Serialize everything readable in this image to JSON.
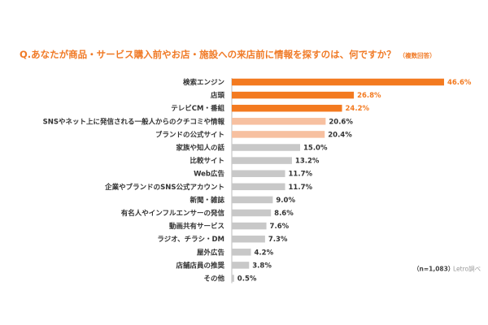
{
  "title": "Q.あなたが商品・サービス購入前やお店・施設への来店前に情報を探すのは、何ですか？",
  "title_note": "（複数回答）",
  "sample_note": "（n=1,083）",
  "source_note": "Letro調べ",
  "colors": {
    "dark_orange": "#f37a20",
    "light_orange": "#f7c0a0",
    "gray": "#c8c8c8",
    "value_dark": "#333333"
  },
  "chart_data": {
    "type": "bar",
    "orientation": "horizontal",
    "title": "Q.あなたが商品・サービス購入前やお店・施設への来店前に情報を探すのは、何ですか？",
    "unit": "%",
    "xlim": [
      0,
      50
    ],
    "grid": false,
    "categories": [
      "検索エンジン",
      "店頭",
      "テレビCM・番組",
      "SNSやネット上に発信される一般人からのクチコミや情報",
      "ブランドの公式サイト",
      "家族や知人の話",
      "比較サイト",
      "Web広告",
      "企業やブランドのSNS公式アカウント",
      "新聞・雑誌",
      "有名人やインフルエンサーの発信",
      "動画共有サービス",
      "ラジオ、チラシ・DM",
      "屋外広告",
      "店舗店員の推奨",
      "その他"
    ],
    "values": [
      46.6,
      26.8,
      24.2,
      20.6,
      20.4,
      15.0,
      13.2,
      11.7,
      11.7,
      9.0,
      8.6,
      7.6,
      7.3,
      4.2,
      3.8,
      0.5
    ],
    "labels": [
      "46.6%",
      "26.8%",
      "24.2%",
      "20.6%",
      "20.4%",
      "15.0%",
      "13.2%",
      "11.7%",
      "11.7%",
      "9.0%",
      "8.6%",
      "7.6%",
      "7.3%",
      "4.2%",
      "3.8%",
      "0.5%"
    ],
    "bar_colors": [
      "dark_orange",
      "dark_orange",
      "dark_orange",
      "light_orange",
      "light_orange",
      "gray",
      "gray",
      "gray",
      "gray",
      "gray",
      "gray",
      "gray",
      "gray",
      "gray",
      "gray",
      "gray"
    ],
    "label_colors": [
      "dark_orange",
      "dark_orange",
      "dark_orange",
      "value_dark",
      "value_dark",
      "value_dark",
      "value_dark",
      "value_dark",
      "value_dark",
      "value_dark",
      "value_dark",
      "value_dark",
      "value_dark",
      "value_dark",
      "value_dark",
      "value_dark"
    ]
  }
}
